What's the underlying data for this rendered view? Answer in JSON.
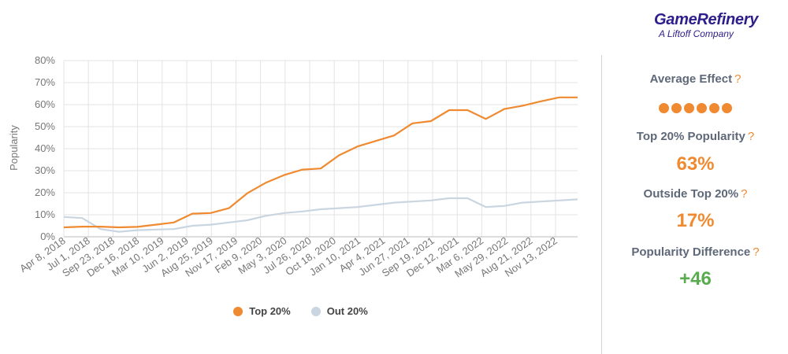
{
  "brand": {
    "name": "GameRefinery",
    "tagline": "A Liftoff Company"
  },
  "stats": {
    "average_effect": {
      "label": "Average Effect",
      "dots": 6
    },
    "top20": {
      "label": "Top 20% Popularity",
      "value": "63%"
    },
    "outside": {
      "label": "Outside Top 20%",
      "value": "17%"
    },
    "difference": {
      "label": "Popularity Difference",
      "value": "+46"
    },
    "question_mark": "?"
  },
  "colors": {
    "top": "#ef8a30",
    "out": "#c9d5e0",
    "green": "#5aab4f",
    "label": "#5e6879"
  },
  "chart_data": {
    "type": "line",
    "ylabel": "Popularity",
    "ylim": [
      0,
      80
    ],
    "y_ticks": [
      "0%",
      "10%",
      "20%",
      "30%",
      "40%",
      "50%",
      "60%",
      "70%",
      "80%"
    ],
    "x_tick_labels": [
      "Apr 8, 2018",
      "Jul 1, 2018",
      "Sep 23, 2018",
      "Dec 16, 2018",
      "Mar 10, 2019",
      "Jun 2, 2019",
      "Aug 25, 2019",
      "Nov 17, 2019",
      "Feb 9, 2020",
      "May 3, 2020",
      "Jul 26, 2020",
      "Oct 18, 2020",
      "Jan 10, 2021",
      "Apr 4, 2021",
      "Jun 27, 2021",
      "Sep 19, 2021",
      "Dec 12, 2021",
      "Mar 6, 2022",
      "May 29, 2022",
      "Aug 21, 2022",
      "Nov 13, 2022"
    ],
    "legend": {
      "top": "Top 20%",
      "out": "Out 20%"
    },
    "series": [
      {
        "name": "Top 20%",
        "values": [
          4.3,
          4.6,
          4.6,
          4.3,
          4.5,
          5.5,
          6.5,
          10.5,
          10.8,
          13,
          19.8,
          24.5,
          28,
          30.5,
          31,
          37,
          41,
          43.5,
          46,
          51.5,
          52.5,
          57.5,
          57.5,
          53.5,
          58,
          59.5,
          61.5,
          63.3,
          63.3
        ]
      },
      {
        "name": "Out 20%",
        "values": [
          9.0,
          8.5,
          3.5,
          2.3,
          3.0,
          3.3,
          3.5,
          5.0,
          5.5,
          6.5,
          7.5,
          9.5,
          10.8,
          11.5,
          12.5,
          13.0,
          13.5,
          14.5,
          15.5,
          16.0,
          16.5,
          17.5,
          17.5,
          13.5,
          14.0,
          15.5,
          16.0,
          16.5,
          17.0
        ]
      }
    ]
  }
}
